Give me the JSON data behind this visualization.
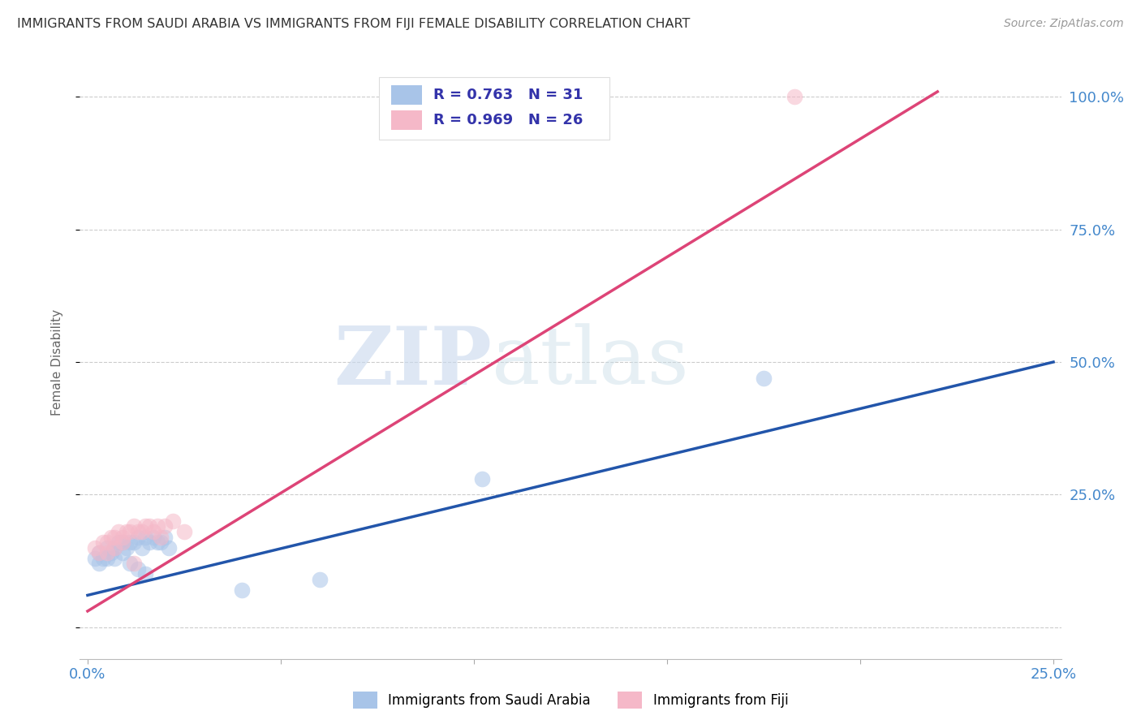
{
  "title": "IMMIGRANTS FROM SAUDI ARABIA VS IMMIGRANTS FROM FIJI FEMALE DISABILITY CORRELATION CHART",
  "source": "Source: ZipAtlas.com",
  "ylabel": "Female Disability",
  "xlim": [
    -0.002,
    0.252
  ],
  "ylim": [
    -0.06,
    1.06
  ],
  "xticks": [
    0.0,
    0.05,
    0.1,
    0.15,
    0.2,
    0.25
  ],
  "yticks": [
    0.0,
    0.25,
    0.5,
    0.75,
    1.0
  ],
  "xtick_labels": [
    "0.0%",
    "",
    "",
    "",
    "",
    "25.0%"
  ],
  "ytick_labels": [
    "",
    "25.0%",
    "50.0%",
    "75.0%",
    "100.0%"
  ],
  "legend_labels": [
    "Immigrants from Saudi Arabia",
    "Immigrants from Fiji"
  ],
  "saudi_R": 0.763,
  "saudi_N": 31,
  "fiji_R": 0.969,
  "fiji_N": 26,
  "saudi_color": "#a8c4e8",
  "fiji_color": "#f5b8c8",
  "saudi_line_color": "#2255aa",
  "fiji_line_color": "#dd4477",
  "watermark_zip": "ZIP",
  "watermark_atlas": "atlas",
  "background_color": "#ffffff",
  "grid_color": "#cccccc",
  "title_color": "#333333",
  "axis_label_color": "#4488cc",
  "saudi_scatter_x": [
    0.002,
    0.003,
    0.004,
    0.005,
    0.006,
    0.007,
    0.008,
    0.009,
    0.01,
    0.011,
    0.012,
    0.013,
    0.014,
    0.015,
    0.016,
    0.017,
    0.018,
    0.019,
    0.02,
    0.021,
    0.003,
    0.005,
    0.007,
    0.009,
    0.011,
    0.013,
    0.015,
    0.04,
    0.06,
    0.102,
    0.175
  ],
  "saudi_scatter_y": [
    0.13,
    0.14,
    0.13,
    0.15,
    0.14,
    0.15,
    0.16,
    0.16,
    0.15,
    0.16,
    0.16,
    0.17,
    0.15,
    0.17,
    0.16,
    0.17,
    0.16,
    0.16,
    0.17,
    0.15,
    0.12,
    0.13,
    0.13,
    0.14,
    0.12,
    0.11,
    0.1,
    0.07,
    0.09,
    0.28,
    0.47
  ],
  "fiji_scatter_x": [
    0.002,
    0.004,
    0.005,
    0.006,
    0.007,
    0.008,
    0.009,
    0.01,
    0.011,
    0.012,
    0.013,
    0.014,
    0.015,
    0.016,
    0.017,
    0.018,
    0.019,
    0.02,
    0.022,
    0.003,
    0.005,
    0.007,
    0.009,
    0.025,
    0.012,
    0.183
  ],
  "fiji_scatter_y": [
    0.15,
    0.16,
    0.16,
    0.17,
    0.17,
    0.18,
    0.17,
    0.18,
    0.18,
    0.19,
    0.18,
    0.18,
    0.19,
    0.19,
    0.18,
    0.19,
    0.17,
    0.19,
    0.2,
    0.14,
    0.14,
    0.15,
    0.16,
    0.18,
    0.12,
    1.0
  ],
  "saudi_trend_x": [
    0.0,
    0.25
  ],
  "saudi_trend_y": [
    0.06,
    0.5
  ],
  "fiji_trend_x": [
    0.0,
    0.22
  ],
  "fiji_trend_y": [
    0.03,
    1.01
  ]
}
